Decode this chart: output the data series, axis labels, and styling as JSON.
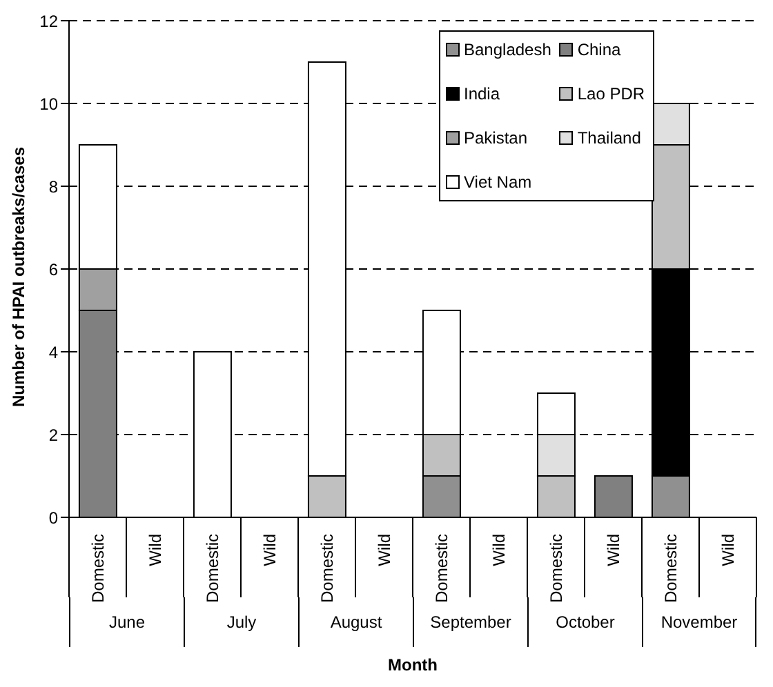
{
  "chart_data": {
    "type": "bar",
    "stacked": true,
    "ylabel": "Number of HPAI outbreaks/cases",
    "xlabel": "Month",
    "categories": [
      "Domestic",
      "Wild",
      "Domestic",
      "Wild",
      "Domestic",
      "Wild",
      "Domestic",
      "Wild",
      "Domestic",
      "Wild",
      "Domestic",
      "Wild"
    ],
    "annotations": [
      "June",
      "July",
      "August",
      "September",
      "October",
      "November"
    ],
    "series": [
      {
        "name": "Bangladesh",
        "color": "#909090",
        "values": [
          0,
          0,
          0,
          0,
          0,
          0,
          1,
          0,
          0,
          0,
          1,
          0
        ]
      },
      {
        "name": "China",
        "color": "#808080",
        "values": [
          5,
          0,
          0,
          0,
          0,
          0,
          0,
          0,
          0,
          1,
          0,
          0
        ]
      },
      {
        "name": "India",
        "color": "#000000",
        "values": [
          0,
          0,
          0,
          0,
          0,
          0,
          0,
          0,
          0,
          0,
          5,
          0
        ]
      },
      {
        "name": "Lao PDR",
        "color": "#c0c0c0",
        "values": [
          0,
          0,
          0,
          0,
          1,
          0,
          1,
          0,
          1,
          0,
          3,
          0
        ]
      },
      {
        "name": "Pakistan",
        "color": "#a0a0a0",
        "values": [
          1,
          0,
          0,
          0,
          0,
          0,
          0,
          0,
          0,
          0,
          0,
          0
        ]
      },
      {
        "name": "Thailand",
        "color": "#e0e0e0",
        "values": [
          0,
          0,
          0,
          0,
          0,
          0,
          0,
          0,
          1,
          0,
          1,
          0
        ]
      },
      {
        "name": "Viet Nam",
        "color": "#ffffff",
        "values": [
          3,
          0,
          4,
          0,
          10,
          0,
          3,
          0,
          1,
          0,
          0,
          0
        ]
      }
    ],
    "ylim": [
      0,
      12
    ],
    "yticks": [
      0,
      2,
      4,
      6,
      8,
      10,
      12
    ],
    "grid": "y",
    "legend": "top"
  }
}
